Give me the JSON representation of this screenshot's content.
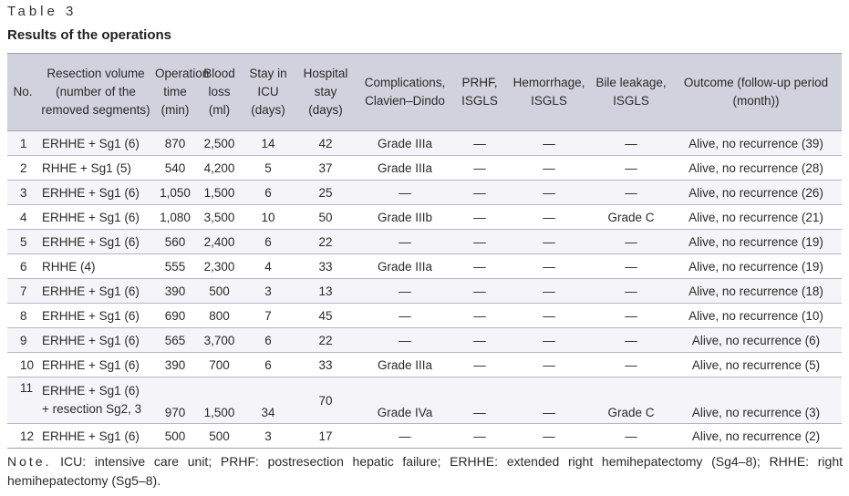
{
  "table_label": "Table 3",
  "title": "Results of the operations",
  "headers": [
    "No.",
    "Resection volume (number of the removed segments)",
    "Operation time (min)",
    "Blood loss (ml)",
    "Stay in ICU (days)",
    "Hospital stay (days)",
    "Complications, Clavien–Dindo",
    "PRHF, ISGLS",
    "Hemorrhage, ISGLS",
    "Bile leakage, ISGLS",
    "Outcome (follow-up period (month))"
  ],
  "rows": [
    {
      "no": "1",
      "volume": "ERHHE + Sg1 (6)",
      "op_time": "870",
      "blood": "2,500",
      "icu": "14",
      "hospital": "42",
      "complications": "Grade IIIa",
      "prhf": "—",
      "hemorrhage": "—",
      "bile": "—",
      "outcome": "Alive, no recurrence (39)"
    },
    {
      "no": "2",
      "volume": "RHHE + Sg1 (5)",
      "op_time": "540",
      "blood": "4,200",
      "icu": "5",
      "hospital": "37",
      "complications": "Grade IIIa",
      "prhf": "—",
      "hemorrhage": "—",
      "bile": "—",
      "outcome": "Alive, no recurrence (28)"
    },
    {
      "no": "3",
      "volume": "ERHHE + Sg1 (6)",
      "op_time": "1,050",
      "blood": "1,500",
      "icu": "6",
      "hospital": "25",
      "complications": "—",
      "prhf": "—",
      "hemorrhage": "—",
      "bile": "—",
      "outcome": "Alive, no recurrence (26)"
    },
    {
      "no": "4",
      "volume": "ERHHE + Sg1 (6)",
      "op_time": "1,080",
      "blood": "3,500",
      "icu": "10",
      "hospital": "50",
      "complications": "Grade IIIb",
      "prhf": "—",
      "hemorrhage": "—",
      "bile": "Grade C",
      "outcome": "Alive, no recurrence (21)"
    },
    {
      "no": "5",
      "volume": "ERHHE + Sg1 (6)",
      "op_time": "560",
      "blood": "2,400",
      "icu": "6",
      "hospital": "22",
      "complications": "—",
      "prhf": "—",
      "hemorrhage": "—",
      "bile": "—",
      "outcome": "Alive, no recurrence (19)"
    },
    {
      "no": "6",
      "volume": "RHHE (4)",
      "op_time": "555",
      "blood": "2,300",
      "icu": "4",
      "hospital": "33",
      "complications": "Grade IIIa",
      "prhf": "—",
      "hemorrhage": "—",
      "bile": "—",
      "outcome": "Alive, no recurrence (19)"
    },
    {
      "no": "7",
      "volume": "ERHHE + Sg1 (6)",
      "op_time": "390",
      "blood": "500",
      "icu": "3",
      "hospital": "13",
      "complications": "—",
      "prhf": "—",
      "hemorrhage": "—",
      "bile": "—",
      "outcome": "Alive, no recurrence (18)"
    },
    {
      "no": "8",
      "volume": "ERHHE + Sg1 (6)",
      "op_time": "690",
      "blood": "800",
      "icu": "7",
      "hospital": "45",
      "complications": "—",
      "prhf": "—",
      "hemorrhage": "—",
      "bile": "—",
      "outcome": "Alive, no recurrence (10)"
    },
    {
      "no": "9",
      "volume": "ERHHE + Sg1 (6)",
      "op_time": "565",
      "blood": "3,700",
      "icu": "6",
      "hospital": "22",
      "complications": "—",
      "prhf": "—",
      "hemorrhage": "—",
      "bile": "—",
      "outcome": "Alive, no recurrence (6)"
    },
    {
      "no": "10",
      "volume": "ERHHE + Sg1 (6)",
      "op_time": "390",
      "blood": "700",
      "icu": "6",
      "hospital": "33",
      "complications": "Grade IIIa",
      "prhf": "—",
      "hemorrhage": "—",
      "bile": "—",
      "outcome": "Alive, no recurrence (5)"
    },
    {
      "no": "11",
      "volume": "ERHHE + Sg1 (6)",
      "volume_line2": "+ resection Sg2, 3",
      "op_time": "970",
      "blood": "1,500",
      "icu": "34",
      "hospital": "70",
      "complications": "Grade IVa",
      "prhf": "—",
      "hemorrhage": "—",
      "bile": "Grade C",
      "outcome": "Alive, no recurrence (3)"
    },
    {
      "no": "12",
      "volume": "ERHHE + Sg1 (6)",
      "op_time": "500",
      "blood": "500",
      "icu": "3",
      "hospital": "17",
      "complications": "—",
      "prhf": "—",
      "hemorrhage": "—",
      "bile": "—",
      "outcome": "Alive, no recurrence (2)"
    }
  ],
  "note_label": "Note.",
  "note_text": "ICU: intensive care unit; PRHF: postresection hepatic failure; ERHHE: extended right hemihepatectomy (Sg4–8); RHHE: right hemihepatectomy (Sg5–8).",
  "colors": {
    "header_bg": "#d2d2de",
    "rule": "#9ea0b8",
    "row_alt": "#f5f5f9"
  }
}
